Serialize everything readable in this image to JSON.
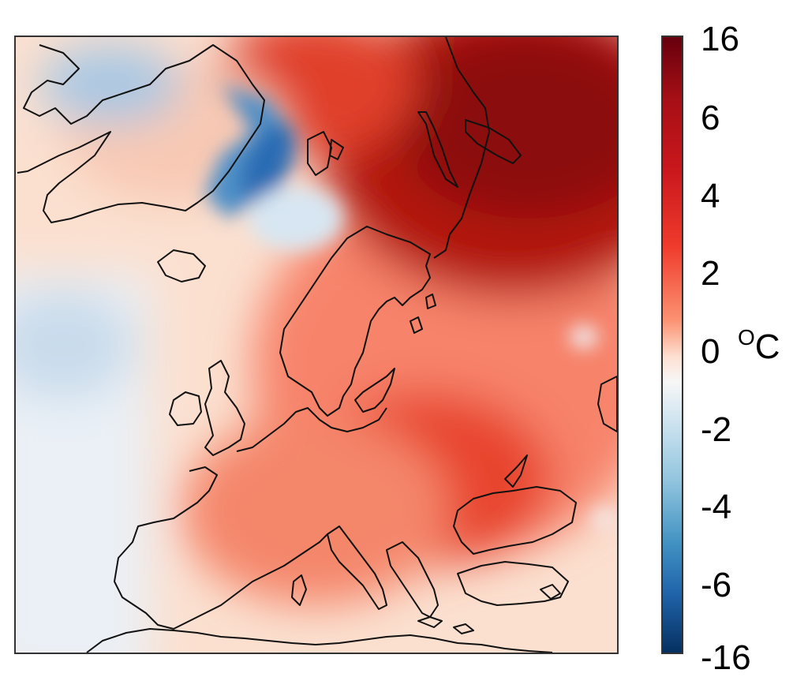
{
  "colorbar": {
    "ticks": [
      "16",
      "6",
      "4",
      "2",
      "0",
      "-2",
      "-4",
      "-6",
      "-16"
    ],
    "unit_symbol": "O",
    "unit_letter": "C",
    "colors": {
      "max": "#67000d",
      "high": "#cb181d",
      "mid_warm": "#fc9272",
      "zero": "#f7f7f7",
      "mid_cold": "#92c5de",
      "low": "#2166ac",
      "min": "#053061"
    }
  },
  "map": {
    "field": "temperature anomaly",
    "region": "Europe",
    "coastline_color": "#111111"
  }
}
